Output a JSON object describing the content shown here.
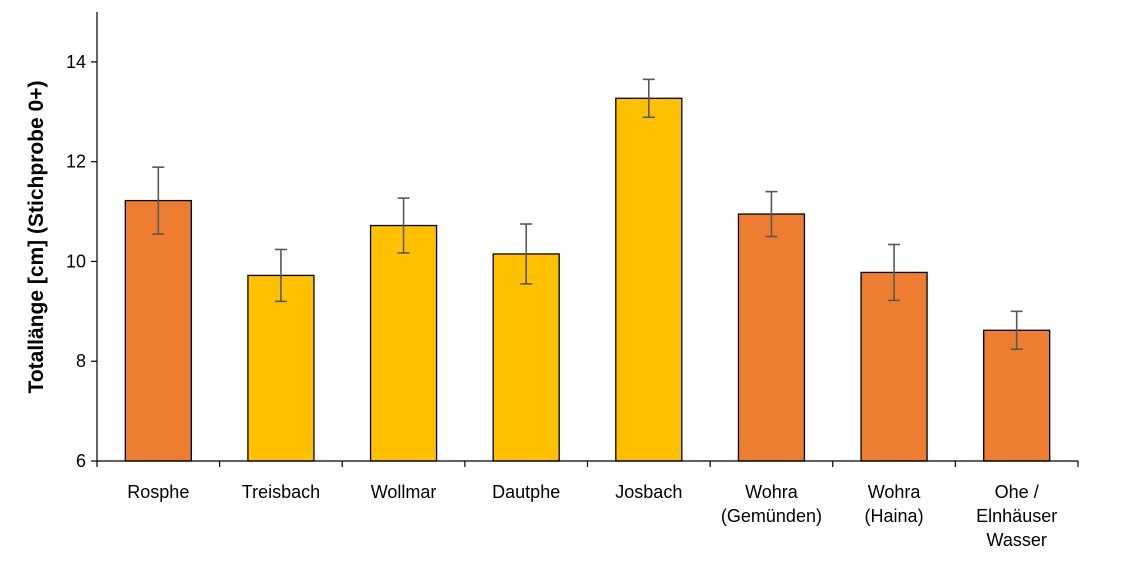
{
  "chart_data": {
    "type": "bar",
    "title": "",
    "xlabel": "",
    "ylabel": "Totallänge [cm] (Stichprobe 0+)",
    "ylim": [
      6,
      15
    ],
    "yticks": [
      6,
      8,
      10,
      12,
      14
    ],
    "grid": false,
    "legend": "none",
    "categories": [
      [
        "Rosphe"
      ],
      [
        "Treisbach"
      ],
      [
        "Wollmar"
      ],
      [
        "Dautphe"
      ],
      [
        "Josbach"
      ],
      [
        "Wohra",
        "(Gemünden)"
      ],
      [
        "Wohra",
        "(Haina)"
      ],
      [
        "Ohe /",
        "Elnhäuser",
        "Wasser"
      ]
    ],
    "values": [
      11.22,
      9.72,
      10.72,
      10.15,
      13.27,
      10.95,
      9.78,
      8.62
    ],
    "error": [
      0.67,
      0.52,
      0.55,
      0.6,
      0.38,
      0.45,
      0.56,
      0.38
    ],
    "bar_colors": [
      "#ED7D31",
      "#FFC000",
      "#FFC000",
      "#FFC000",
      "#FFC000",
      "#ED7D31",
      "#ED7D31",
      "#ED7D31"
    ],
    "error_bar_color": "#595959",
    "bar_outline_color": "#000000"
  }
}
